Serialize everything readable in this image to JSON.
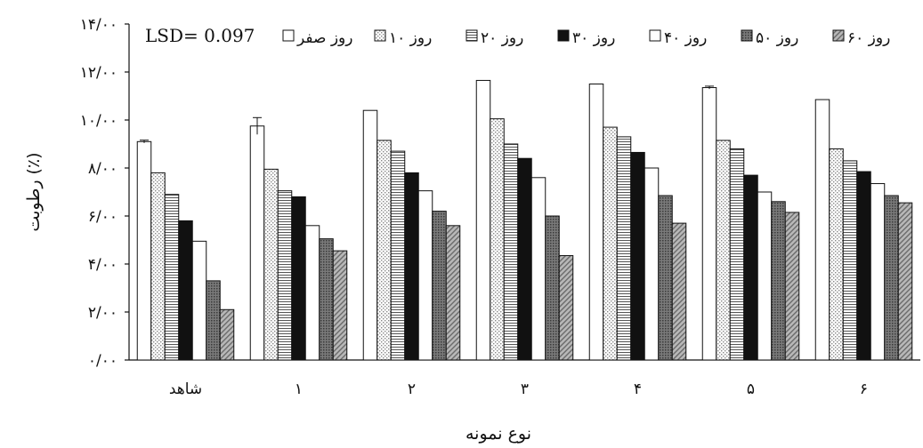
{
  "chart_data": {
    "type": "bar",
    "ylabel": "رطوبت (٪)",
    "xlabel": "نوع نمونه",
    "annotation": "LSD= 0.097",
    "ylim": [
      0,
      14
    ],
    "y_ticks": [
      "۰/۰۰",
      "۲/۰۰",
      "۴/۰۰",
      "۶/۰۰",
      "۸/۰۰",
      "۱۰/۰۰",
      "۱۲/۰۰",
      "۱۴/۰۰"
    ],
    "categories": [
      "شاهد",
      "۱",
      "۲",
      "۳",
      "۴",
      "۵",
      "۶"
    ],
    "legend_position": "top",
    "grid": false,
    "series": [
      {
        "name": "روز صفر",
        "values": [
          9.1,
          9.75,
          10.4,
          11.65,
          11.5,
          11.35,
          10.85
        ],
        "errors": [
          0.06,
          0.35,
          0.0,
          0.0,
          0.0,
          0.06,
          0.0
        ]
      },
      {
        "name": "روز ۱۰",
        "values": [
          7.8,
          7.95,
          9.15,
          10.05,
          9.7,
          9.15,
          8.8
        ]
      },
      {
        "name": "روز ۲۰",
        "values": [
          6.9,
          7.05,
          8.7,
          9.0,
          9.3,
          8.8,
          8.3
        ]
      },
      {
        "name": "روز ۳۰",
        "values": [
          5.8,
          6.8,
          7.8,
          8.4,
          8.65,
          7.7,
          7.85
        ]
      },
      {
        "name": "روز ۴۰",
        "values": [
          4.95,
          5.6,
          7.05,
          7.6,
          8.0,
          7.0,
          7.35
        ]
      },
      {
        "name": "روز ۵۰",
        "values": [
          3.3,
          5.05,
          6.2,
          6.0,
          6.85,
          6.6,
          6.85
        ]
      },
      {
        "name": "روز ۶۰",
        "values": [
          2.1,
          4.55,
          5.6,
          4.35,
          5.7,
          6.15,
          6.55
        ]
      }
    ]
  }
}
